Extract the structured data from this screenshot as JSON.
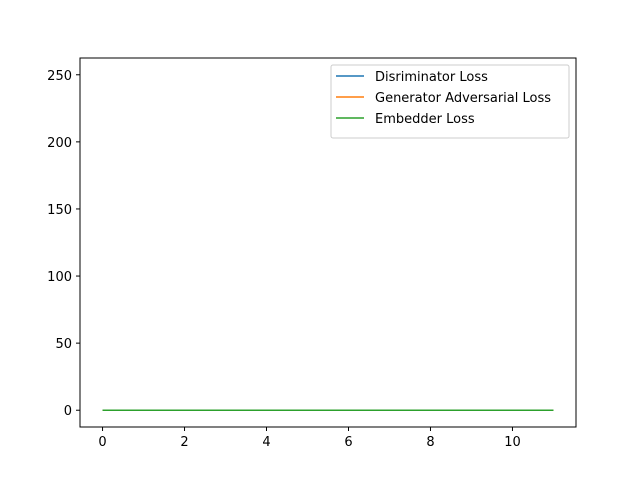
{
  "chart_data": {
    "type": "line",
    "title": "",
    "xlabel": "",
    "ylabel": "",
    "xlim": [
      -0.55,
      11.55
    ],
    "ylim": [
      -12.5,
      262.5
    ],
    "x_ticks": [
      0,
      2,
      4,
      6,
      8,
      10
    ],
    "y_ticks": [
      0,
      50,
      100,
      150,
      200,
      250
    ],
    "x": [
      0,
      1,
      2,
      3,
      4,
      5,
      6,
      7,
      8,
      9,
      10,
      11
    ],
    "series": [
      {
        "name": "Disriminator Loss",
        "color": "#1f77b4",
        "values": [
          0,
          0,
          0,
          0,
          0,
          0,
          0,
          0,
          0,
          0,
          0,
          0
        ]
      },
      {
        "name": "Generator Adversarial Loss",
        "color": "#ff7f0e",
        "values": [
          0,
          0,
          0,
          0,
          0,
          0,
          0,
          0,
          0,
          0,
          0,
          0
        ]
      },
      {
        "name": "Embedder Loss",
        "color": "#2ca02c",
        "values": [
          0,
          0,
          0,
          0,
          0,
          0,
          0,
          0,
          0,
          0,
          0,
          0
        ]
      }
    ],
    "grid": false,
    "legend_position": "upper-right"
  }
}
